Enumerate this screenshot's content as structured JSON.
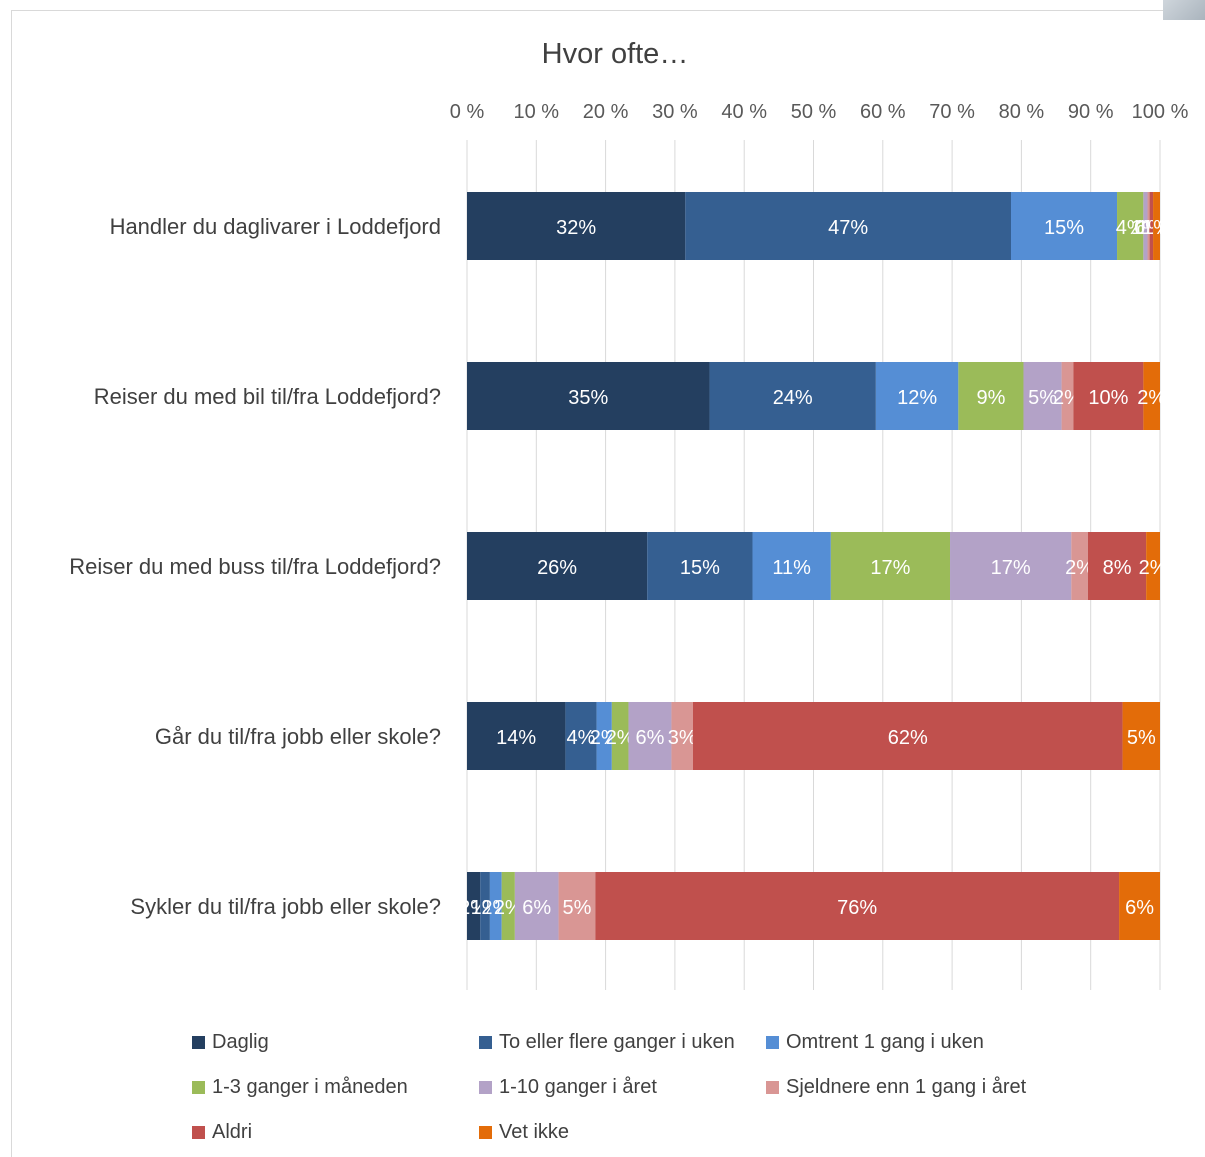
{
  "chart_data": {
    "type": "bar",
    "orientation": "horizontal",
    "stacked": "percent",
    "title": "Hvor ofte…",
    "x_ticks": [
      "0 %",
      "10 %",
      "20 %",
      "30 %",
      "40 %",
      "50 %",
      "60 %",
      "70 %",
      "80 %",
      "90 %",
      "100 %"
    ],
    "xlim": [
      0,
      100
    ],
    "grid": true,
    "legend_position": "bottom",
    "categories": [
      "Handler du daglivarer i Loddefjord",
      "Reiser du med bil til/fra Loddefjord?",
      "Reiser du med buss til/fra Loddefjord?",
      "Går du til/fra jobb eller skole?",
      "Sykler du til/fra jobb eller skole?"
    ],
    "series": [
      {
        "name": "Daglig",
        "color": "#243f60",
        "values": [
          31.5,
          35.0,
          26.0,
          14.2,
          1.9
        ],
        "labels": [
          "32%",
          "35%",
          "26%",
          "14%",
          "2%"
        ]
      },
      {
        "name": "To eller flere ganger i uken",
        "color": "#355f91",
        "values": [
          47.0,
          24.0,
          15.2,
          4.5,
          1.4
        ],
        "labels": [
          "47%",
          "24%",
          "15%",
          "4%",
          "1%"
        ]
      },
      {
        "name": "Omtrent 1 gang i uken",
        "color": "#558ed5",
        "values": [
          15.3,
          11.9,
          11.3,
          2.2,
          1.7
        ],
        "labels": [
          "15%",
          "12%",
          "11%",
          "2%",
          "2%"
        ]
      },
      {
        "name": "1-3 ganger i måneden",
        "color": "#9bbb59",
        "values": [
          3.8,
          9.4,
          17.2,
          2.4,
          1.9
        ],
        "labels": [
          "4%",
          "9%",
          "17%",
          "2%",
          "2%"
        ]
      },
      {
        "name": "1-10 ganger i året",
        "color": "#b3a2c7",
        "values": [
          0.6,
          5.5,
          17.5,
          6.2,
          6.3
        ],
        "labels": [
          "1%",
          "5%",
          "17%",
          "6%",
          "6%"
        ]
      },
      {
        "name": "Sjeldnere enn 1 gang i året",
        "color": "#d99694",
        "values": [
          0.3,
          1.7,
          2.4,
          3.1,
          5.3
        ],
        "labels": [
          "0%",
          "2%",
          "2%",
          "3%",
          "5%"
        ]
      },
      {
        "name": "Aldri",
        "color": "#c0504d",
        "values": [
          0.5,
          10.1,
          8.4,
          62.0,
          75.5
        ],
        "labels": [
          "1%",
          "10%",
          "8%",
          "62%",
          "76%"
        ]
      },
      {
        "name": "Vet ikke",
        "color": "#e36c09",
        "values": [
          1.0,
          2.4,
          2.0,
          5.4,
          5.9
        ],
        "labels": [
          "1%",
          "2%",
          "2%",
          "5%",
          "6%"
        ]
      }
    ]
  }
}
